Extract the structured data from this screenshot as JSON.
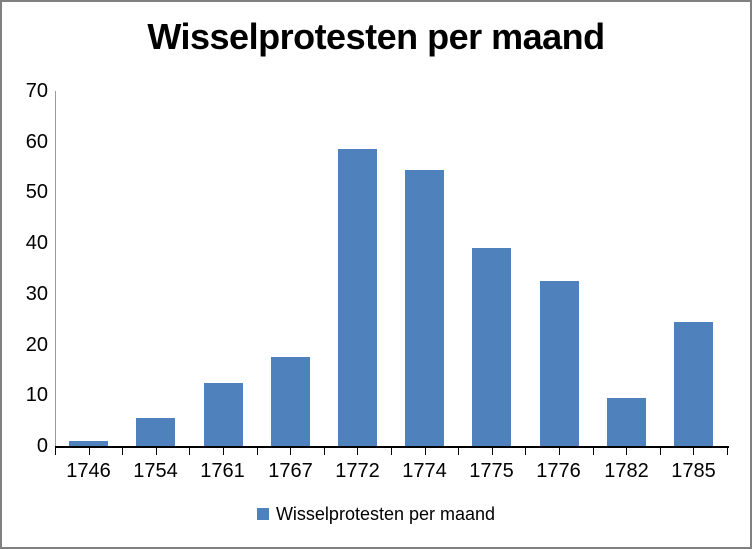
{
  "chart_data": {
    "type": "bar",
    "title": "Wisselprotesten per maand",
    "categories": [
      "1746",
      "1754",
      "1761",
      "1767",
      "1772",
      "1774",
      "1775",
      "1776",
      "1782",
      "1785"
    ],
    "values": [
      1,
      5.5,
      12.5,
      17.5,
      58.5,
      54.5,
      39,
      32.5,
      9.5,
      24.5
    ],
    "xlabel": "",
    "ylabel": "",
    "ylim": [
      0,
      70
    ],
    "yticks": [
      0,
      10,
      20,
      30,
      40,
      50,
      60,
      70
    ],
    "grid": false,
    "legend": "Wisselprotesten per maand",
    "legend_position": "bottom",
    "bar_color": "#4F81BD"
  },
  "colors": {
    "bar": "#4F81BD",
    "x_axis_line": "#000000",
    "y_axis_line": "#9B9B9B",
    "tick": "#000000",
    "frame_border": "#808080",
    "background": "#FFFFFF",
    "text": "#000000"
  }
}
